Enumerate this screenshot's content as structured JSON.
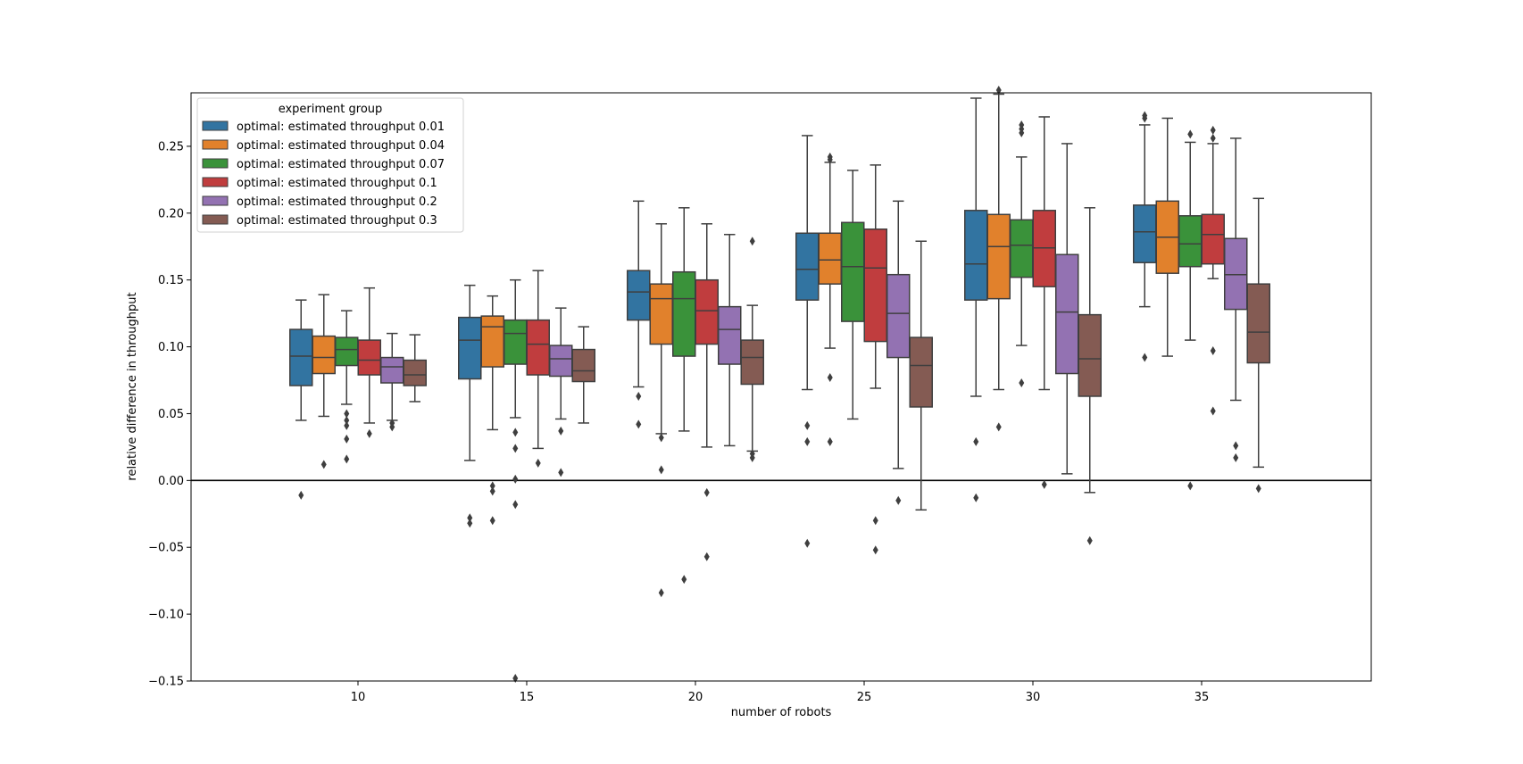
{
  "chart_data": {
    "type": "boxplot",
    "xlabel": "number of robots",
    "ylabel": "relative difference in throughput",
    "ylim": [
      -0.15,
      0.29
    ],
    "y_ticks": [
      "−0.15",
      "−0.10",
      "−0.05",
      "0.00",
      "0.05",
      "0.10",
      "0.15",
      "0.20",
      "0.25"
    ],
    "y_tick_values": [
      -0.15,
      -0.1,
      -0.05,
      0.0,
      0.05,
      0.1,
      0.15,
      0.2,
      0.25
    ],
    "categories": [
      "10",
      "15",
      "20",
      "25",
      "30",
      "35"
    ],
    "reference_line_y": 0.0,
    "legend": {
      "title": "experiment group",
      "placement": "top-left"
    },
    "series": [
      {
        "name": "optimal: estimated throughput 0.01",
        "color": "#3274a1",
        "boxes": [
          {
            "q1": 0.071,
            "median": 0.093,
            "q3": 0.113,
            "whisker_low": 0.045,
            "whisker_high": 0.135,
            "outliers": [
              -0.011
            ]
          },
          {
            "q1": 0.076,
            "median": 0.105,
            "q3": 0.122,
            "whisker_low": 0.015,
            "whisker_high": 0.146,
            "outliers": [
              -0.028,
              -0.032
            ]
          },
          {
            "q1": 0.12,
            "median": 0.141,
            "q3": 0.157,
            "whisker_low": 0.07,
            "whisker_high": 0.209,
            "outliers": [
              0.063,
              0.042
            ]
          },
          {
            "q1": 0.135,
            "median": 0.158,
            "q3": 0.185,
            "whisker_low": 0.068,
            "whisker_high": 0.258,
            "outliers": [
              0.041,
              0.029,
              -0.047
            ]
          },
          {
            "q1": 0.135,
            "median": 0.162,
            "q3": 0.202,
            "whisker_low": 0.063,
            "whisker_high": 0.286,
            "outliers": [
              0.029,
              -0.013
            ]
          },
          {
            "q1": 0.163,
            "median": 0.186,
            "q3": 0.206,
            "whisker_low": 0.13,
            "whisker_high": 0.266,
            "outliers": [
              0.273,
              0.271,
              0.092
            ]
          }
        ]
      },
      {
        "name": "optimal: estimated throughput 0.04",
        "color": "#e1812c",
        "boxes": [
          {
            "q1": 0.08,
            "median": 0.092,
            "q3": 0.108,
            "whisker_low": 0.048,
            "whisker_high": 0.139,
            "outliers": [
              0.012
            ]
          },
          {
            "q1": 0.085,
            "median": 0.115,
            "q3": 0.123,
            "whisker_low": 0.038,
            "whisker_high": 0.138,
            "outliers": [
              -0.004,
              -0.008,
              -0.03
            ]
          },
          {
            "q1": 0.102,
            "median": 0.136,
            "q3": 0.147,
            "whisker_low": 0.035,
            "whisker_high": 0.192,
            "outliers": [
              0.032,
              0.008,
              -0.084
            ]
          },
          {
            "q1": 0.147,
            "median": 0.165,
            "q3": 0.185,
            "whisker_low": 0.099,
            "whisker_high": 0.238,
            "outliers": [
              0.242,
              0.24,
              0.077,
              0.029
            ]
          },
          {
            "q1": 0.136,
            "median": 0.175,
            "q3": 0.199,
            "whisker_low": 0.068,
            "whisker_high": 0.289,
            "outliers": [
              0.292,
              0.04
            ]
          },
          {
            "q1": 0.155,
            "median": 0.182,
            "q3": 0.209,
            "whisker_low": 0.093,
            "whisker_high": 0.271,
            "outliers": []
          }
        ]
      },
      {
        "name": "optimal: estimated throughput 0.07",
        "color": "#3a923a",
        "boxes": [
          {
            "q1": 0.086,
            "median": 0.098,
            "q3": 0.107,
            "whisker_low": 0.057,
            "whisker_high": 0.127,
            "outliers": [
              0.05,
              0.045,
              0.041,
              0.031,
              0.016
            ]
          },
          {
            "q1": 0.087,
            "median": 0.11,
            "q3": 0.12,
            "whisker_low": 0.047,
            "whisker_high": 0.15,
            "outliers": [
              0.036,
              0.024,
              0.001,
              -0.018,
              -0.148
            ]
          },
          {
            "q1": 0.093,
            "median": 0.136,
            "q3": 0.156,
            "whisker_low": 0.037,
            "whisker_high": 0.204,
            "outliers": [
              -0.074
            ]
          },
          {
            "q1": 0.119,
            "median": 0.16,
            "q3": 0.193,
            "whisker_low": 0.046,
            "whisker_high": 0.232,
            "outliers": []
          },
          {
            "q1": 0.152,
            "median": 0.176,
            "q3": 0.195,
            "whisker_low": 0.101,
            "whisker_high": 0.242,
            "outliers": [
              0.266,
              0.263,
              0.26,
              0.073
            ]
          },
          {
            "q1": 0.16,
            "median": 0.177,
            "q3": 0.198,
            "whisker_low": 0.105,
            "whisker_high": 0.253,
            "outliers": [
              0.259,
              -0.004
            ]
          }
        ]
      },
      {
        "name": "optimal: estimated throughput 0.1",
        "color": "#c03d3e",
        "boxes": [
          {
            "q1": 0.079,
            "median": 0.09,
            "q3": 0.105,
            "whisker_low": 0.043,
            "whisker_high": 0.144,
            "outliers": [
              0.035
            ]
          },
          {
            "q1": 0.079,
            "median": 0.102,
            "q3": 0.12,
            "whisker_low": 0.024,
            "whisker_high": 0.157,
            "outliers": [
              0.013
            ]
          },
          {
            "q1": 0.102,
            "median": 0.127,
            "q3": 0.15,
            "whisker_low": 0.025,
            "whisker_high": 0.192,
            "outliers": [
              -0.009,
              -0.057
            ]
          },
          {
            "q1": 0.104,
            "median": 0.159,
            "q3": 0.188,
            "whisker_low": 0.069,
            "whisker_high": 0.236,
            "outliers": [
              -0.03,
              -0.052
            ]
          },
          {
            "q1": 0.145,
            "median": 0.174,
            "q3": 0.202,
            "whisker_low": 0.068,
            "whisker_high": 0.272,
            "outliers": [
              -0.003
            ]
          },
          {
            "q1": 0.162,
            "median": 0.184,
            "q3": 0.199,
            "whisker_low": 0.151,
            "whisker_high": 0.252,
            "outliers": [
              0.262,
              0.256,
              0.097,
              0.052
            ]
          }
        ]
      },
      {
        "name": "optimal: estimated throughput 0.2",
        "color": "#9372b2",
        "boxes": [
          {
            "q1": 0.073,
            "median": 0.085,
            "q3": 0.092,
            "whisker_low": 0.045,
            "whisker_high": 0.11,
            "outliers": [
              0.043,
              0.04
            ]
          },
          {
            "q1": 0.078,
            "median": 0.091,
            "q3": 0.101,
            "whisker_low": 0.046,
            "whisker_high": 0.129,
            "outliers": [
              0.037,
              0.006
            ]
          },
          {
            "q1": 0.087,
            "median": 0.113,
            "q3": 0.13,
            "whisker_low": 0.026,
            "whisker_high": 0.184,
            "outliers": []
          },
          {
            "q1": 0.092,
            "median": 0.125,
            "q3": 0.154,
            "whisker_low": 0.009,
            "whisker_high": 0.209,
            "outliers": [
              -0.015
            ]
          },
          {
            "q1": 0.08,
            "median": 0.126,
            "q3": 0.169,
            "whisker_low": 0.005,
            "whisker_high": 0.252,
            "outliers": []
          },
          {
            "q1": 0.128,
            "median": 0.154,
            "q3": 0.181,
            "whisker_low": 0.06,
            "whisker_high": 0.256,
            "outliers": [
              0.026,
              0.017
            ]
          }
        ]
      },
      {
        "name": "optimal: estimated throughput 0.3",
        "color": "#845b53",
        "boxes": [
          {
            "q1": 0.071,
            "median": 0.079,
            "q3": 0.09,
            "whisker_low": 0.059,
            "whisker_high": 0.109,
            "outliers": []
          },
          {
            "q1": 0.074,
            "median": 0.082,
            "q3": 0.098,
            "whisker_low": 0.043,
            "whisker_high": 0.115,
            "outliers": []
          },
          {
            "q1": 0.072,
            "median": 0.092,
            "q3": 0.105,
            "whisker_low": 0.022,
            "whisker_high": 0.131,
            "outliers": [
              0.179,
              0.02,
              0.017
            ]
          },
          {
            "q1": 0.055,
            "median": 0.086,
            "q3": 0.107,
            "whisker_low": -0.022,
            "whisker_high": 0.179,
            "outliers": []
          },
          {
            "q1": 0.063,
            "median": 0.091,
            "q3": 0.124,
            "whisker_low": -0.009,
            "whisker_high": 0.204,
            "outliers": [
              -0.045
            ]
          },
          {
            "q1": 0.088,
            "median": 0.111,
            "q3": 0.147,
            "whisker_low": 0.01,
            "whisker_high": 0.211,
            "outliers": [
              -0.006
            ]
          }
        ]
      }
    ]
  }
}
